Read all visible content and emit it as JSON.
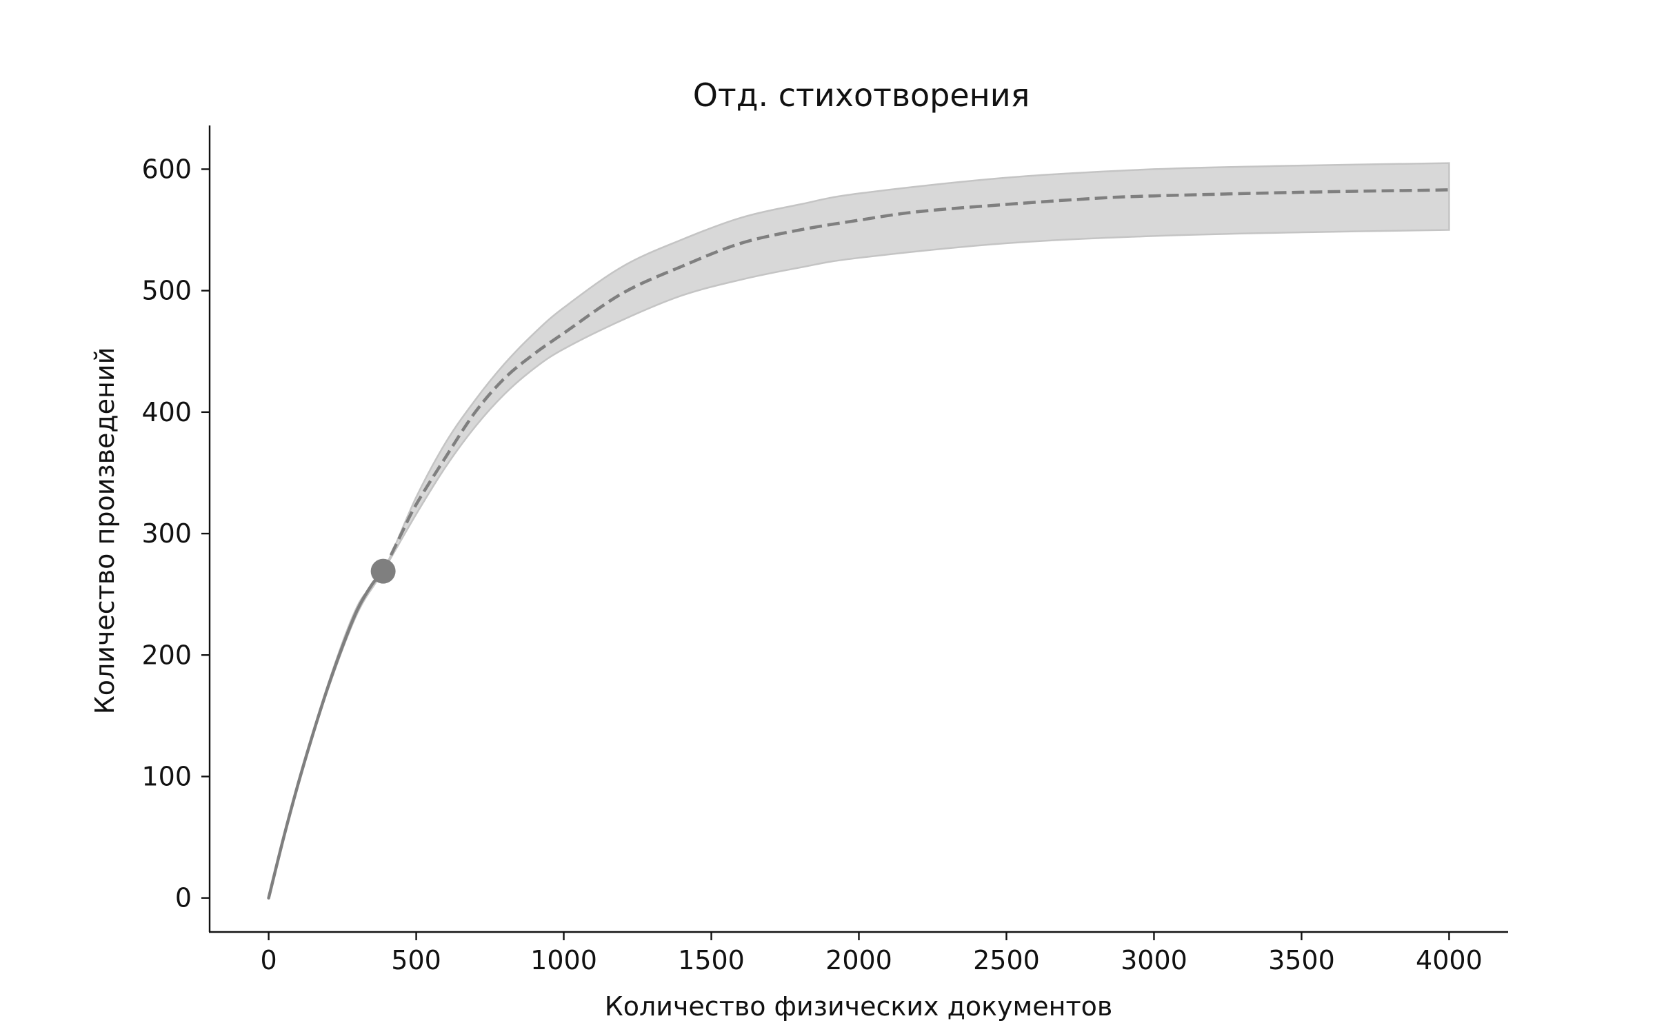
{
  "chart_data": {
    "type": "area",
    "title": "Отд. стихотворения",
    "xlabel": "Количество физических документов",
    "ylabel": "Количество произведений",
    "xlim": [
      -200,
      4200
    ],
    "ylim": [
      -28,
      636
    ],
    "xticks": [
      0,
      500,
      1000,
      1500,
      2000,
      2500,
      3000,
      3500,
      4000
    ],
    "yticks": [
      0,
      100,
      200,
      300,
      400,
      500,
      600
    ],
    "grid": false,
    "colors": {
      "line": "#7f7f7f",
      "band": "#d8d8d8",
      "band_edge": "#c4c4c4",
      "point": "#7f7f7f",
      "axis": "#111111"
    },
    "series": [
      {
        "style": "interpolation-solid",
        "x": [
          0,
          50,
          100,
          150,
          200,
          250,
          300,
          350,
          388
        ],
        "y": [
          0,
          49,
          94,
          135,
          173,
          207,
          237,
          258,
          269
        ]
      },
      {
        "style": "extrapolation-dashed",
        "x": [
          388,
          450,
          500,
          600,
          700,
          800,
          900,
          1000,
          1200,
          1400,
          1600,
          1800,
          2000,
          2200,
          2500,
          2800,
          3000,
          3500,
          4000
        ],
        "y": [
          269,
          300,
          324,
          363,
          400,
          428,
          448,
          465,
          498,
          520,
          539,
          550,
          558,
          565,
          571,
          576,
          578,
          581,
          583
        ]
      },
      {
        "style": "confidence-band",
        "x": [
          0,
          100,
          200,
          300,
          388,
          500,
          600,
          700,
          800,
          900,
          1000,
          1200,
          1400,
          1600,
          1800,
          2000,
          2500,
          3000,
          3500,
          4000
        ],
        "upper": [
          0,
          94,
          175,
          240,
          269,
          330,
          375,
          410,
          440,
          465,
          486,
          520,
          542,
          560,
          571,
          580,
          593,
          600,
          603,
          605
        ],
        "lower": [
          0,
          94,
          171,
          234,
          269,
          316,
          355,
          388,
          415,
          436,
          452,
          476,
          496,
          509,
          519,
          527,
          539,
          545,
          548,
          550
        ]
      }
    ],
    "points": [
      {
        "x": 388,
        "y": 269
      }
    ]
  }
}
